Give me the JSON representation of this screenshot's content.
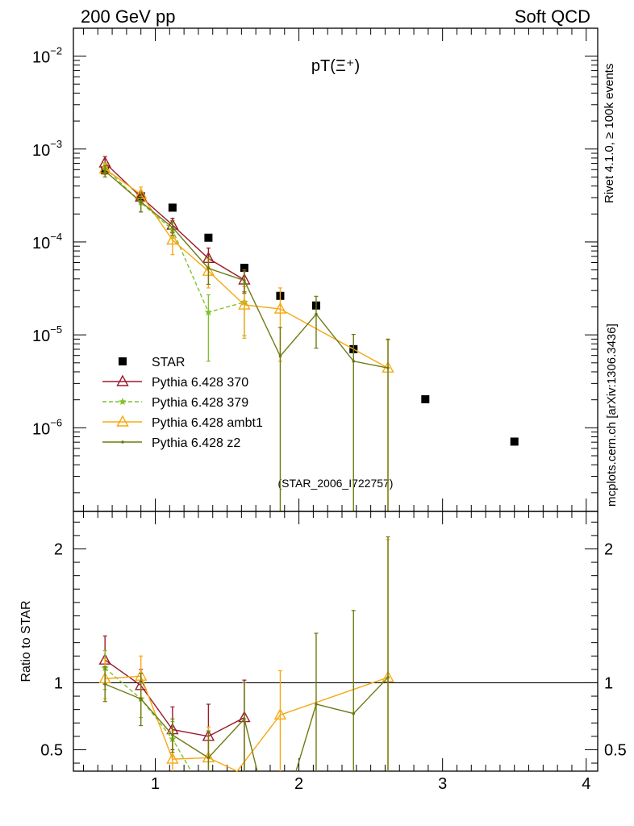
{
  "header": {
    "left": "200 GeV pp",
    "right": "Soft QCD",
    "side_top": "Rivet 4.1.0, ≥ 100k events",
    "side_bottom": "mcplots.cern.ch [arXiv:1306.3436]"
  },
  "colors": {
    "STAR": "#000000",
    "p370": "#9a1a2a",
    "p379": "#7fc22a",
    "ambt1": "#f5a813",
    "z2": "#6e7a12"
  },
  "chart_data": [
    {
      "type": "scatter",
      "title": "pT(Ξ⁺)",
      "watermark": "(STAR_2006_I722757)",
      "yscale": "log",
      "xlim": [
        0.43,
        4.08
      ],
      "ylim_log10": [
        -6.9,
        -1.7
      ],
      "yticks": [
        {
          "v": 0.01,
          "base": "10",
          "exp": "−2"
        },
        {
          "v": 0.001,
          "base": "10",
          "exp": "−3"
        },
        {
          "v": 0.0001,
          "base": "10",
          "exp": "−4"
        },
        {
          "v": 1e-05,
          "base": "10",
          "exp": "−5"
        },
        {
          "v": 1e-06,
          "base": "10",
          "exp": "−6"
        }
      ],
      "series": [
        {
          "name": "STAR",
          "key": "STAR",
          "marker": "square",
          "line": "none",
          "x": [
            0.65,
            0.9,
            1.12,
            1.37,
            1.62,
            1.87,
            2.12,
            2.38,
            2.88,
            3.5
          ],
          "y": [
            0.00059,
            0.00031,
            0.000234,
            0.000111,
            5.27e-05,
            2.63e-05,
            2.07e-05,
            7.02e-06,
            2.03e-06,
            7.1e-07
          ]
        },
        {
          "name": "Pythia 6.428 370",
          "key": "p370",
          "marker": "triangle-open",
          "line": "solid",
          "x": [
            0.65,
            0.9,
            1.12,
            1.37,
            1.62
          ],
          "y": [
            0.00071,
            0.000305,
            0.000152,
            6.65e-05,
            3.9e-05
          ],
          "ylo": [
            0.00062,
            0.00026,
            0.000125,
            5.2e-05,
            2.9e-05
          ],
          "yhi": [
            0.00083,
            0.00035,
            0.00018,
            8.6e-05,
            4.8e-05
          ]
        },
        {
          "name": "Pythia 6.428 379",
          "key": "p379",
          "marker": "star",
          "line": "dashed",
          "x": [
            0.65,
            0.9,
            1.12,
            1.37,
            1.62
          ],
          "y": [
            0.00063,
            0.000265,
            0.000135,
            1.75e-05,
            2.25e-05
          ],
          "ylo": [
            0.00055,
            0.00021,
            0.00011,
            5.2e-06,
            9.8e-06
          ],
          "yhi": [
            0.00071,
            0.00031,
            0.00016,
            2.7e-05,
            3.6e-05
          ]
        },
        {
          "name": "Pythia 6.428 ambt1",
          "key": "ambt1",
          "marker": "triangle-open",
          "line": "solid",
          "x": [
            0.65,
            0.9,
            1.12,
            1.37,
            1.62,
            1.87,
            2.62
          ],
          "y": [
            0.00061,
            0.000325,
            0.000105,
            4.85e-05,
            2.1e-05,
            1.9e-05,
            4.4e-06
          ],
          "ylo": [
            0.00053,
            0.00027,
            7.3e-05,
            3.2e-05,
            9.2e-06,
            5.2e-06,
            1e-07
          ],
          "yhi": [
            0.00069,
            0.00039,
            0.00014,
            6.6e-05,
            3.3e-05,
            3.2e-05,
            8.8e-06
          ]
        },
        {
          "name": "Pythia 6.428 z2",
          "key": "z2",
          "marker": "dot",
          "line": "solid",
          "x": [
            0.65,
            0.9,
            1.12,
            1.37,
            1.62,
            1.87,
            2.12,
            2.38,
            2.62
          ],
          "y": [
            0.00058,
            0.00027,
            0.000143,
            5.2e-05,
            3.85e-05,
            5.9e-06,
            1.67e-05,
            5.2e-06,
            4.4e-06
          ],
          "ylo": [
            0.0005,
            0.00021,
            0.000118,
            3.5e-05,
            2.8e-05,
            1e-07,
            7.2e-06,
            1e-07,
            1e-07
          ],
          "yhi": [
            0.00066,
            0.00033,
            0.00017,
            6.9e-05,
            5e-05,
            1.2e-05,
            2.6e-05,
            1.01e-05,
            9e-06
          ]
        }
      ]
    },
    {
      "type": "line",
      "ylabel": "Ratio to STAR",
      "xlim": [
        0.43,
        4.08
      ],
      "ylim": [
        0.34,
        2.28
      ],
      "xticks": [
        1,
        2,
        3,
        4
      ],
      "yticks": [
        0.5,
        1,
        2
      ],
      "reference": 1,
      "series": [
        {
          "key": "p370",
          "marker": "triangle-open",
          "line": "solid",
          "x": [
            0.65,
            0.9,
            1.12,
            1.37,
            1.62
          ],
          "y": [
            1.17,
            0.98,
            0.65,
            0.6,
            0.74
          ],
          "ylo": [
            0.99,
            0.87,
            0.5,
            0.44,
            0.34
          ],
          "yhi": [
            1.35,
            1.1,
            0.82,
            0.84,
            1.02
          ]
        },
        {
          "key": "p379",
          "marker": "star",
          "line": "dashed",
          "x": [
            0.65,
            0.9,
            1.12,
            1.25
          ],
          "y": [
            1.11,
            0.88,
            0.58,
            0.34
          ],
          "ylo": [
            0.95,
            0.74,
            0.45,
            null
          ],
          "yhi": [
            1.24,
            1.0,
            0.71,
            null
          ]
        },
        {
          "key": "ambt1",
          "marker": "triangle-open",
          "line": "solid",
          "x": [
            0.65,
            0.9,
            1.12,
            1.37,
            1.57,
            1.87,
            2.62
          ],
          "y": [
            1.03,
            1.05,
            0.43,
            0.44,
            0.34,
            0.76,
            1.04
          ],
          "ylo": [
            0.88,
            0.89,
            0.34,
            0.34,
            null,
            0.34,
            0.34
          ],
          "yhi": [
            1.18,
            1.2,
            0.64,
            0.67,
            null,
            1.09,
            2.07
          ]
        },
        {
          "key": "z2",
          "marker": "dot",
          "line": "solid",
          "x": [
            0.65,
            0.9,
            1.12,
            1.37,
            1.62,
            1.71
          ],
          "y": [
            0.99,
            0.88,
            0.61,
            0.44,
            0.73,
            0.34
          ],
          "ylo": [
            0.86,
            0.68,
            0.48,
            0.34,
            0.34,
            null
          ],
          "yhi": [
            1.12,
            1.07,
            0.73,
            0.64,
            1.0,
            null
          ]
        },
        {
          "key": "z2",
          "marker": "dot",
          "line": "solid",
          "x": [
            1.98,
            2.12,
            2.38,
            2.62
          ],
          "y": [
            0.34,
            0.84,
            0.77,
            1.04
          ],
          "ylo": [
            null,
            0.34,
            0.34,
            0.34
          ],
          "yhi": [
            null,
            1.37,
            1.54,
            2.09
          ]
        }
      ]
    }
  ],
  "legend": {
    "placement": "lower-left",
    "items": [
      {
        "key": "STAR",
        "label": "STAR",
        "marker": "square",
        "line": "none"
      },
      {
        "key": "p370",
        "label": "Pythia 6.428 370",
        "marker": "triangle-open",
        "line": "solid"
      },
      {
        "key": "p379",
        "label": "Pythia 6.428 379",
        "marker": "star",
        "line": "dashed"
      },
      {
        "key": "ambt1",
        "label": "Pythia 6.428 ambt1",
        "marker": "triangle-open",
        "line": "solid"
      },
      {
        "key": "z2",
        "label": "Pythia 6.428 z2",
        "marker": "dot",
        "line": "solid"
      }
    ]
  }
}
